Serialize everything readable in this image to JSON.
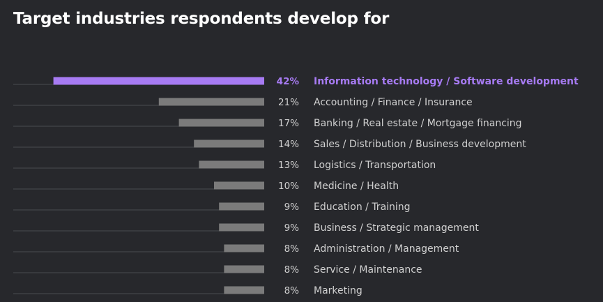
{
  "title": "Target industries respondents develop for",
  "colors": {
    "background": "#27282c",
    "highlight_bar": "#a77bf3",
    "highlight_text": "#a77bf3",
    "bar": "#7b7b7b",
    "baseline": "#4a4b50",
    "text": "#d0d0d0",
    "title": "#ffffff"
  },
  "chart_data": {
    "type": "bar",
    "orientation": "horizontal",
    "direction": "right-to-left",
    "unit": "%",
    "highlight_index": 0,
    "categories": [
      "Information technology / Software development",
      "Accounting / Finance / Insurance",
      "Banking / Real estate / Mortgage financing",
      "Sales / Distribution / Business development",
      "Logistics / Transportation",
      "Medicine / Health",
      "Education / Training",
      "Business / Strategic management",
      "Administration / Management",
      "Service / Maintenance",
      "Marketing"
    ],
    "values": [
      42,
      21,
      17,
      14,
      13,
      10,
      9,
      9,
      8,
      8,
      8
    ],
    "value_labels": [
      "42%",
      "21%",
      "17%",
      "14%",
      "13%",
      "10%",
      "9%",
      "9%",
      "8%",
      "8%",
      "8%"
    ]
  }
}
